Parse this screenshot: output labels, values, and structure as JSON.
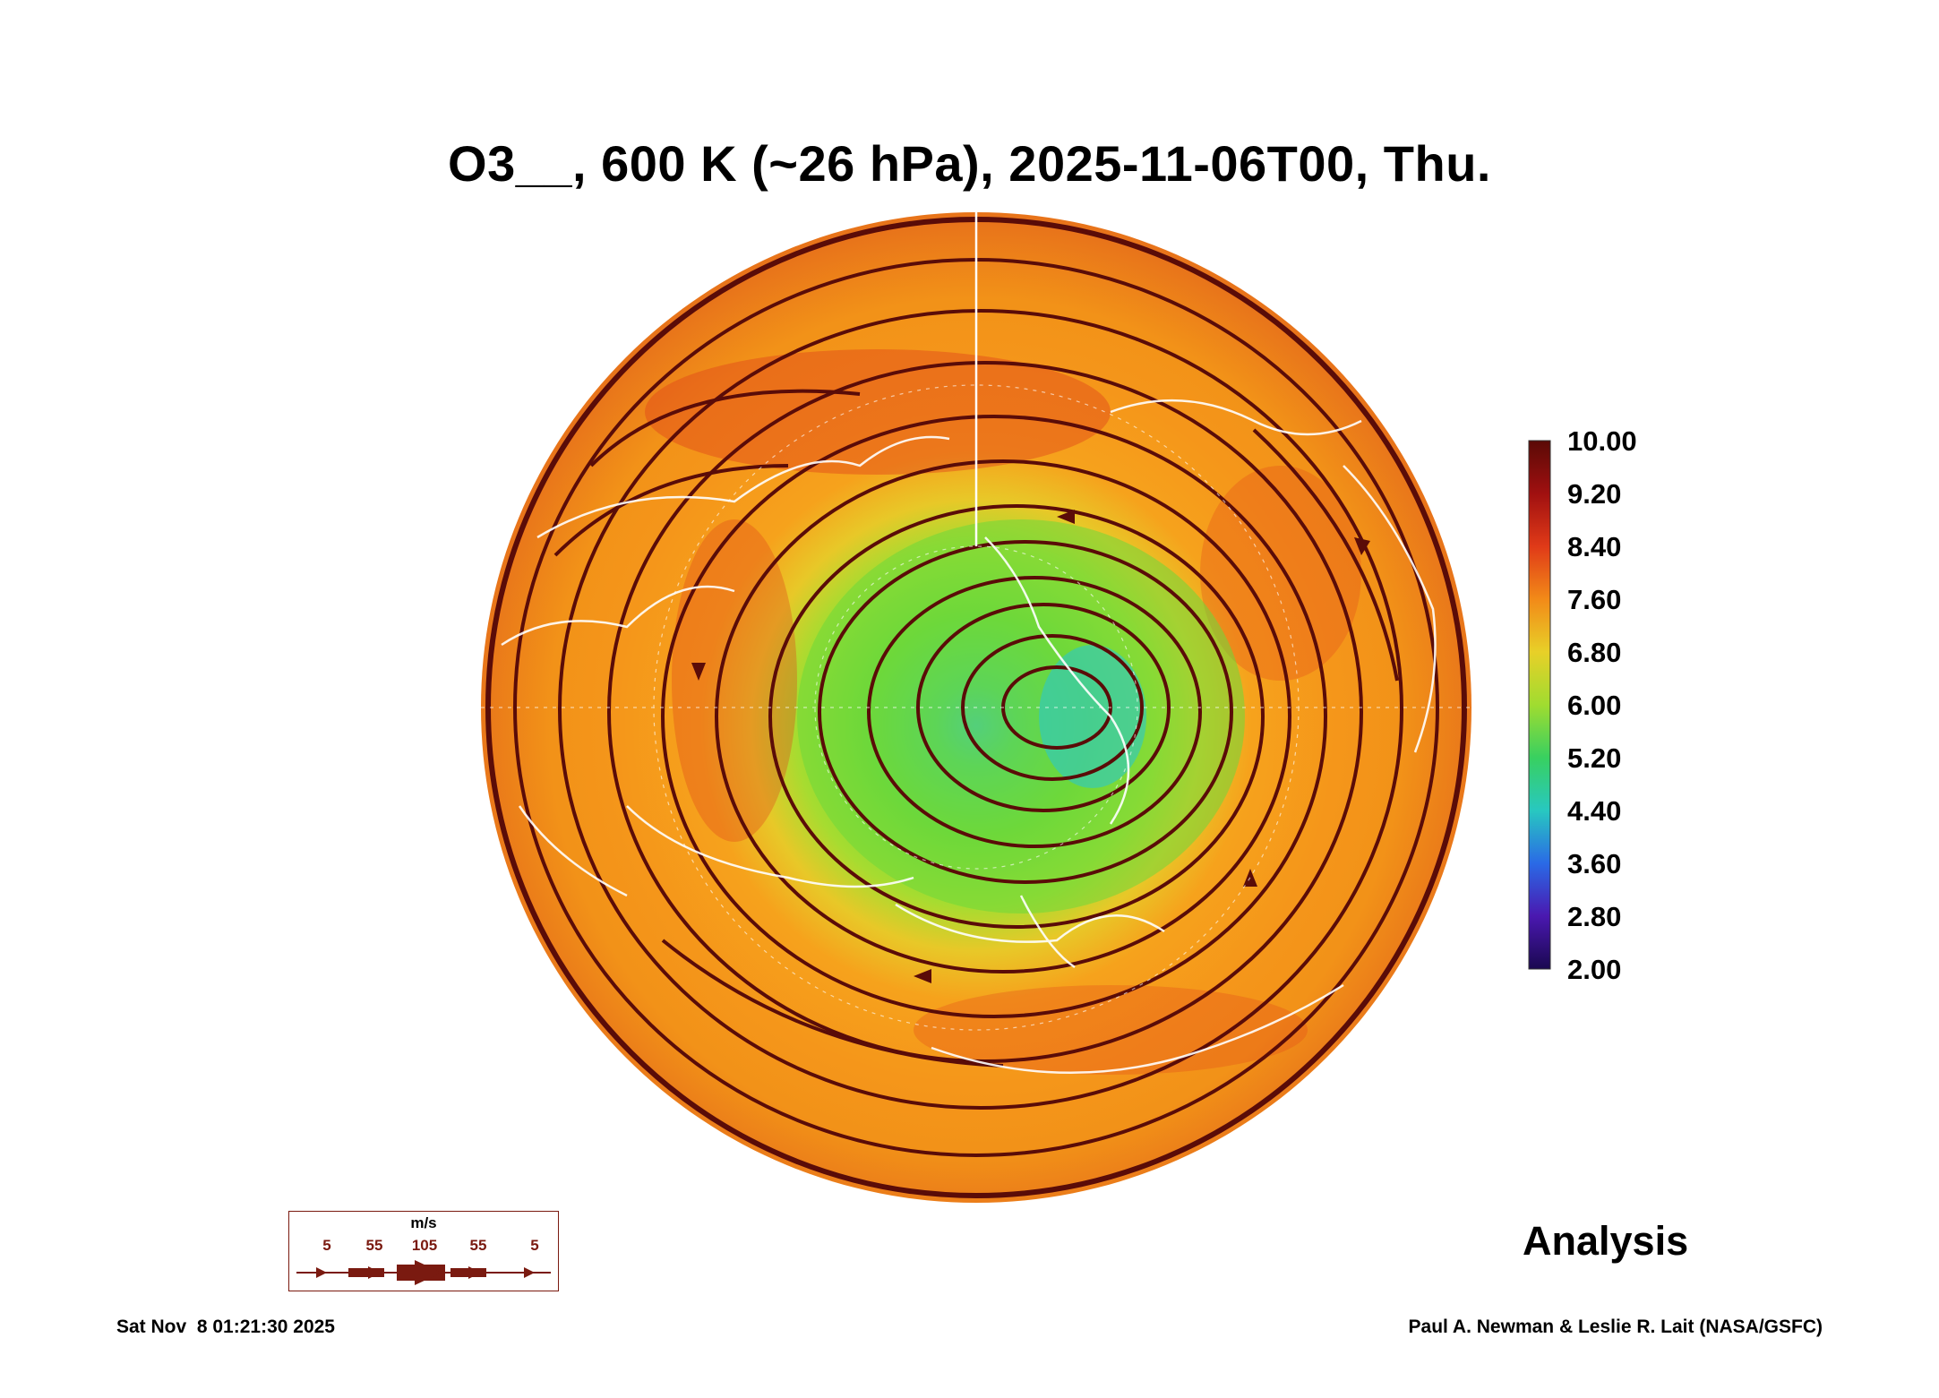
{
  "title": "O3__, 600 K (~26 hPa), 2025-11-06T00, Thu.",
  "colorbar": {
    "labels": [
      "10.00",
      "9.20",
      "8.40",
      "7.60",
      "6.80",
      "6.00",
      "5.20",
      "4.40",
      "3.60",
      "2.80",
      "2.00"
    ],
    "colors": {
      "top": "#5a0a06",
      "red": "#c8281a",
      "orange": "#f08a18",
      "yellow": "#e8d028",
      "green": "#6ed83a",
      "cyan": "#2cc8c8",
      "blue": "#2a6ae6",
      "violet": "#4a18b0",
      "bottom": "#1a0850"
    }
  },
  "map": {
    "description_colors": {
      "ring": "#6e1208",
      "vortex_green": "#7ee03c",
      "streamline": "#5a0c08",
      "coast": "#ffffff"
    }
  },
  "wind_legend": {
    "unit": "m/s",
    "labels": [
      "5",
      "55",
      "105",
      "55",
      "5"
    ]
  },
  "analysis_label": "Analysis",
  "footer": {
    "timestamp": "Sat Nov  8 01:21:30 2025",
    "credit": "Paul A. Newman & Leslie R. Lait (NASA/GSFC)"
  }
}
